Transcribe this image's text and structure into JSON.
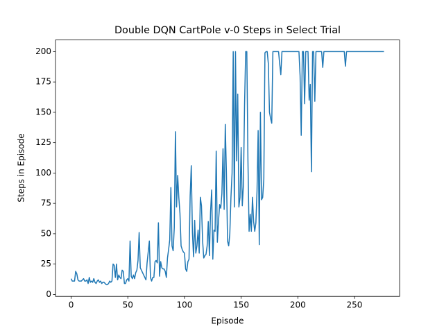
{
  "chart_data": {
    "type": "line",
    "title": "Double DQN CartPole v-0 Steps in Select Trial",
    "xlabel": "Episode",
    "ylabel": "Steps in Episode",
    "x": [
      0,
      1,
      2,
      3,
      4,
      5,
      6,
      7,
      8,
      9,
      10,
      11,
      12,
      13,
      14,
      15,
      16,
      17,
      18,
      19,
      20,
      21,
      22,
      23,
      24,
      25,
      26,
      27,
      28,
      29,
      30,
      31,
      32,
      33,
      34,
      35,
      36,
      37,
      38,
      39,
      40,
      41,
      42,
      43,
      44,
      45,
      46,
      47,
      48,
      49,
      50,
      51,
      52,
      53,
      54,
      55,
      56,
      57,
      58,
      59,
      60,
      61,
      62,
      63,
      64,
      65,
      66,
      67,
      68,
      69,
      70,
      71,
      72,
      73,
      74,
      75,
      76,
      77,
      78,
      79,
      80,
      81,
      82,
      83,
      84,
      85,
      86,
      87,
      88,
      89,
      90,
      91,
      92,
      93,
      94,
      95,
      96,
      97,
      98,
      99,
      100,
      101,
      102,
      103,
      104,
      105,
      106,
      107,
      108,
      109,
      110,
      111,
      112,
      113,
      114,
      115,
      116,
      117,
      118,
      119,
      120,
      121,
      122,
      123,
      124,
      125,
      126,
      127,
      128,
      129,
      130,
      131,
      132,
      133,
      134,
      135,
      136,
      137,
      138,
      139,
      140,
      141,
      142,
      143,
      144,
      145,
      146,
      147,
      148,
      149,
      150,
      151,
      152,
      153,
      154,
      155,
      156,
      157,
      158,
      159,
      160,
      161,
      162,
      163,
      164,
      165,
      166,
      167,
      168,
      169,
      170,
      171,
      172,
      173,
      174,
      175,
      176,
      177,
      178,
      179,
      180,
      181,
      182,
      183,
      184,
      185,
      186,
      187,
      188,
      189,
      190,
      191,
      192,
      193,
      194,
      195,
      196,
      197,
      198,
      199,
      200,
      201,
      202,
      203,
      204,
      205,
      206,
      207,
      208,
      209,
      210,
      211,
      212,
      213,
      214,
      215,
      216,
      217,
      218,
      219,
      220,
      221,
      222,
      223,
      224,
      225,
      226,
      227,
      228,
      229,
      230,
      231,
      232,
      233,
      234,
      235,
      236,
      237,
      238,
      239,
      240,
      241,
      242,
      243,
      244,
      245,
      246,
      247,
      248,
      249,
      250,
      251,
      252,
      253,
      254,
      255,
      256,
      257,
      258,
      259,
      260,
      261,
      262,
      263,
      264,
      265,
      266,
      267,
      268,
      269,
      270,
      271,
      272,
      273,
      274,
      275,
      276
    ],
    "series": [
      {
        "color": "#1f77b4",
        "values": [
          13,
          11,
          11,
          11,
          19,
          17,
          12,
          11,
          11,
          11,
          12,
          13,
          11,
          11,
          12,
          9,
          14,
          10,
          11,
          10,
          13,
          10,
          9,
          11,
          12,
          10,
          11,
          9,
          10,
          10,
          9,
          8,
          8,
          9,
          11,
          10,
          11,
          25,
          24,
          14,
          25,
          12,
          16,
          14,
          13,
          20,
          19,
          9,
          9,
          12,
          13,
          11,
          44,
          15,
          13,
          16,
          13,
          18,
          20,
          28,
          51,
          22,
          20,
          18,
          16,
          14,
          12,
          26,
          35,
          44,
          14,
          11,
          14,
          14,
          27,
          28,
          26,
          59,
          15,
          27,
          22,
          21,
          21,
          19,
          14,
          30,
          37,
          45,
          88,
          40,
          36,
          55,
          134,
          72,
          98,
          80,
          67,
          40,
          37,
          35,
          34,
          21,
          19,
          27,
          29,
          81,
          106,
          51,
          31,
          61,
          34,
          40,
          53,
          34,
          80,
          73,
          44,
          30,
          32,
          33,
          40,
          60,
          32,
          68,
          86,
          29,
          53,
          52,
          118,
          43,
          60,
          74,
          71,
          83,
          120,
          70,
          140,
          100,
          44,
          40,
          50,
          80,
          100,
          200,
          72,
          200,
          110,
          165,
          72,
          80,
          121,
          73,
          90,
          156,
          200,
          200,
          110,
          52,
          66,
          52,
          80,
          60,
          52,
          59,
          85,
          135,
          41,
          150,
          78,
          80,
          95,
          199,
          200,
          200,
          190,
          150,
          145,
          141,
          200,
          200,
          200,
          200,
          200,
          200,
          190,
          181,
          200,
          200,
          200,
          200,
          200,
          200,
          200,
          200,
          200,
          200,
          200,
          200,
          200,
          200,
          200,
          200,
          180,
          131,
          200,
          200,
          157,
          200,
          200,
          200,
          160,
          173,
          101,
          200,
          200,
          159,
          200,
          200,
          200,
          200,
          200,
          200,
          187,
          200,
          200,
          200,
          200,
          200,
          200,
          200,
          200,
          200,
          200,
          200,
          200,
          200,
          200,
          200,
          200,
          200,
          200,
          200,
          188,
          200,
          200,
          200,
          200,
          200,
          200,
          200,
          200,
          200,
          200,
          200,
          200,
          200,
          200,
          200,
          200,
          200,
          200,
          200,
          200,
          200,
          200,
          200,
          200,
          200,
          200,
          200,
          200,
          200,
          200,
          200,
          200,
          200,
          200
        ]
      }
    ],
    "xlim": [
      -13.8,
      289.8
    ],
    "ylim": [
      -1.6,
      209.6
    ],
    "xticks": [
      0,
      50,
      100,
      150,
      200,
      250
    ],
    "yticks": [
      0,
      25,
      50,
      75,
      100,
      125,
      150,
      175,
      200
    ]
  }
}
